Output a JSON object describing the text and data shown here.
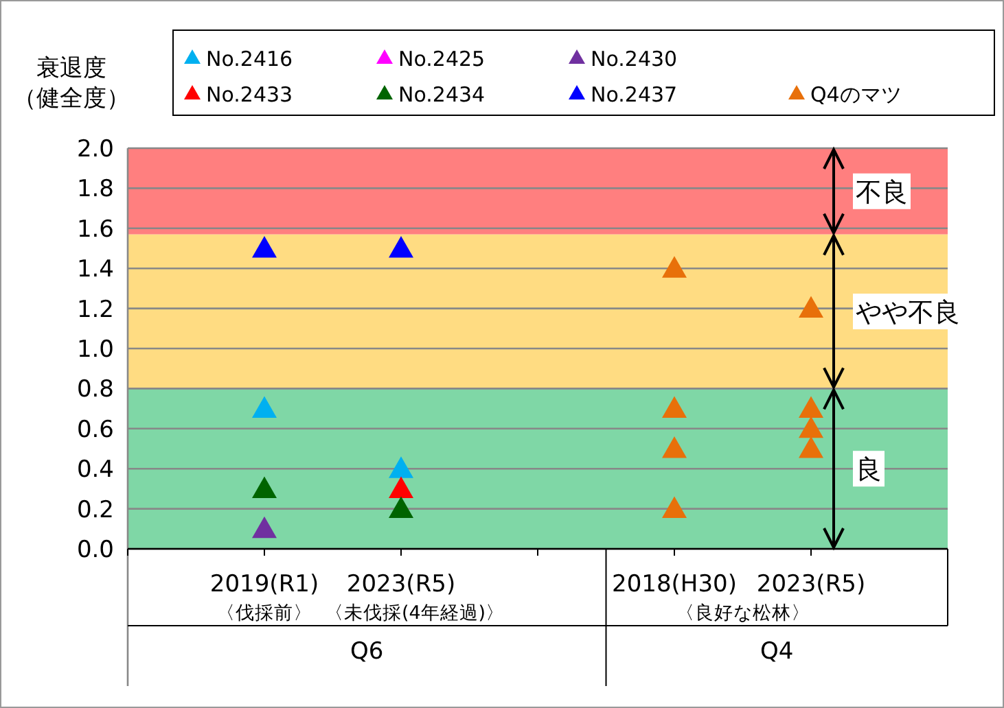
{
  "chart_data": {
    "type": "scatter",
    "ylabel": "衰退度（健全度）",
    "marker": "triangle",
    "grid": "y",
    "legend": "top",
    "categories": [
      "2019(R1)",
      "2023(R5)",
      null,
      "2018(H30)",
      "2023(R5)"
    ],
    "ylim": [
      0,
      2
    ],
    "yticks": [
      {
        "value": 0,
        "label": "0.0"
      },
      {
        "value": 0.2,
        "label": "0.2"
      },
      {
        "value": 0.4,
        "label": "0.4"
      },
      {
        "value": 0.6,
        "label": "0.6"
      },
      {
        "value": 0.8,
        "label": "0.8"
      },
      {
        "value": 1,
        "label": "1.0"
      },
      {
        "value": 1.2,
        "label": "1.2"
      },
      {
        "value": 1.4,
        "label": "1.4"
      },
      {
        "value": 1.6,
        "label": "1.6"
      },
      {
        "value": 1.8,
        "label": "1.8"
      },
      {
        "value": 2,
        "label": "2.0"
      }
    ],
    "bands": [
      {
        "axis": "y",
        "from": 0,
        "to": 0.8,
        "label": "良",
        "color": "#7fd7a6"
      },
      {
        "axis": "y",
        "from": 0.8,
        "to": 1.57,
        "label": "やや不良",
        "color": "#ffdc82"
      },
      {
        "axis": "y",
        "from": 1.57,
        "to": 2,
        "label": "不良",
        "color": "#ff7f7f"
      }
    ],
    "series": [
      {
        "name": "No.2416",
        "color": "#00b0f0",
        "values": [
          0.7,
          0.4,
          null,
          null,
          null
        ]
      },
      {
        "name": "No.2425",
        "color": "#ff00ff",
        "values": [
          null,
          null,
          null,
          null,
          null
        ]
      },
      {
        "name": "No.2430",
        "color": "#7030a0",
        "values": [
          0.1,
          null,
          null,
          null,
          null
        ]
      },
      {
        "name": "No.2433",
        "color": "#ff0000",
        "values": [
          null,
          0.3,
          null,
          null,
          null
        ]
      },
      {
        "name": "No.2434",
        "color": "#006400",
        "values": [
          0.3,
          0.2,
          null,
          null,
          null
        ]
      },
      {
        "name": "No.2437",
        "color": "#0000ff",
        "values": [
          1.5,
          1.5,
          null,
          null,
          null
        ]
      },
      {
        "name": "Q4のマツ",
        "color": "#e8700a",
        "values": [
          null,
          null,
          null,
          1.4,
          1.2
        ]
      },
      {
        "color": "#e8700a",
        "values": [
          null,
          null,
          null,
          0.7,
          0.7
        ]
      },
      {
        "color": "#e8700a",
        "values": [
          null,
          null,
          null,
          0.5,
          0.6
        ]
      },
      {
        "color": "#e8700a",
        "values": [
          null,
          null,
          null,
          0.2,
          0.5
        ]
      }
    ],
    "annotations": [
      "〈伐採前〉",
      "〈未伐採(4年経過)〉",
      "〈良好な松林〉",
      "Q6",
      "Q4"
    ]
  }
}
